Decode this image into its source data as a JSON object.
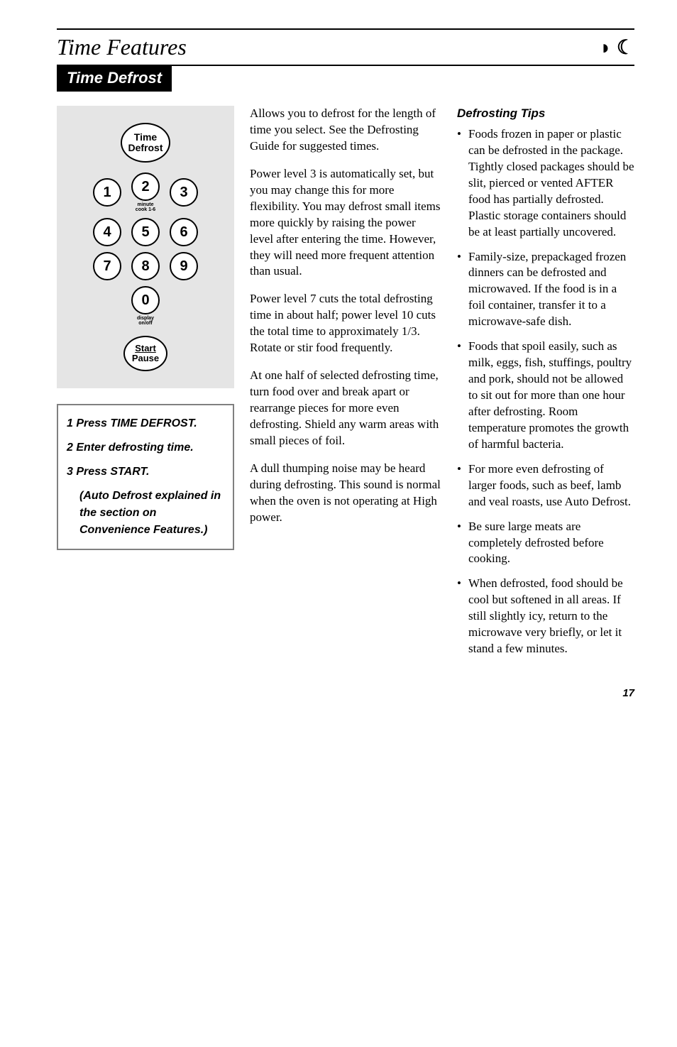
{
  "header": {
    "title": "Time Features",
    "corner_glyph": "◗ ☾"
  },
  "section": {
    "bar_label": "Time Defrost"
  },
  "keypad": {
    "time_defrost_line1": "Time",
    "time_defrost_line2": "Defrost",
    "minute_cook_label": "minute cook 1-6",
    "display_label": "display on/off",
    "start_line1": "Start",
    "start_line2": "Pause",
    "nums": [
      "1",
      "2",
      "3",
      "4",
      "5",
      "6",
      "7",
      "8",
      "9",
      "0"
    ]
  },
  "steps": {
    "s1": "1  Press TIME DEFROST.",
    "s2": "2  Enter defrosting time.",
    "s3": "3  Press START.",
    "note": "(Auto Defrost explained in the section on Convenience Features.)"
  },
  "body": {
    "p1": "Allows you to defrost for the length of time you select. See the Defrosting Guide for suggested times.",
    "p2": "Power level 3 is automatically set, but you may change this for more flexibility. You may defrost small items more quickly by raising the power level after entering the time. However, they will need more frequent attention than usual.",
    "p3": "Power level 7 cuts the total defrosting time in about half; power level 10 cuts the total time to approximately 1/3. Rotate or stir food frequently.",
    "p4": "At one half of selected defrosting time, turn food over and break apart or rearrange pieces for more even defrosting. Shield any warm areas with small pieces of foil.",
    "p5": "A dull thumping noise may be heard during defrosting. This sound is normal when the oven is not operating at High power."
  },
  "tips": {
    "heading": "Defrosting Tips",
    "items": [
      "Foods frozen in paper or plastic can be defrosted in the package. Tightly closed packages should be slit, pierced or vented AFTER food has partially defrosted. Plastic storage containers should be at least partially uncovered.",
      "Family-size, prepackaged frozen dinners can be defrosted and microwaved. If the food is in a foil container, transfer it to a microwave-safe dish.",
      "Foods that spoil easily, such as milk, eggs, fish, stuffings, poultry and pork, should not be allowed to sit out for more than one hour after defrosting. Room temperature promotes the growth of harmful bacteria.",
      "For more even defrosting of larger foods, such as beef, lamb and veal roasts, use Auto Defrost.",
      "Be sure large meats are completely defrosted before cooking.",
      "When defrosted, food should be cool but softened in all areas. If still slightly icy, return to the microwave very briefly, or let it stand a few minutes."
    ]
  },
  "page_number": "17"
}
